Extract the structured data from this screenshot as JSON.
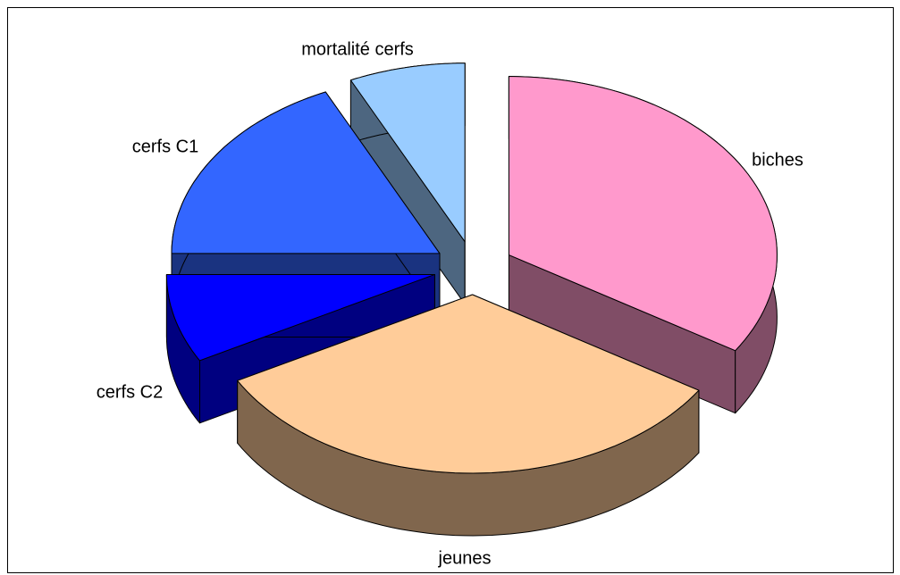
{
  "chart_data": {
    "type": "pie",
    "categories": [
      "biches",
      "jeunes",
      "cerfs C2",
      "cerfs C1",
      "mortalité cerfs"
    ],
    "values": [
      34,
      33,
      8,
      18,
      7
    ],
    "colors": [
      "#ff99cc",
      "#ffcc99",
      "#0000ff",
      "#3366ff",
      "#99ccff"
    ]
  }
}
